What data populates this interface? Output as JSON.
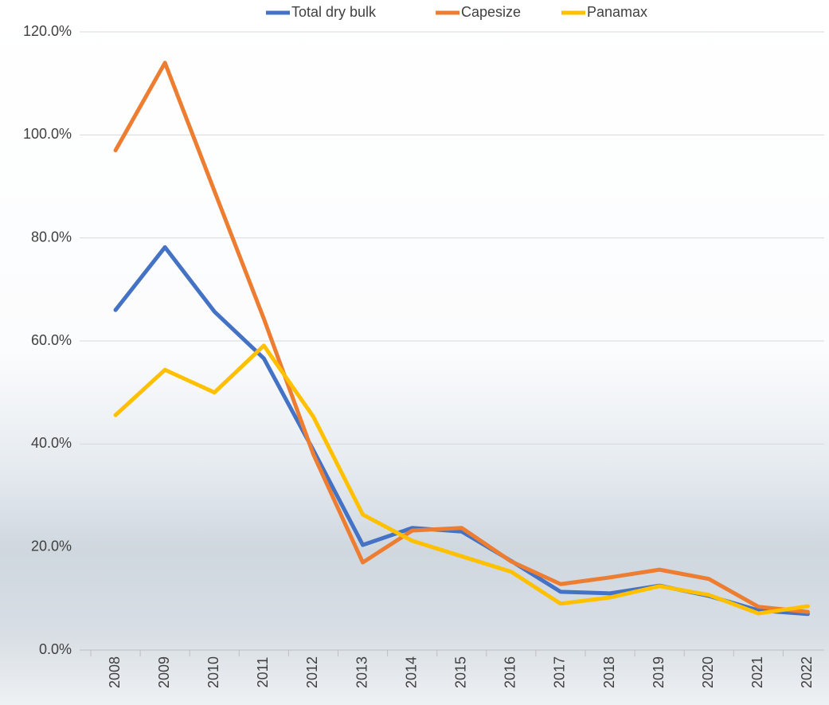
{
  "chart_data": {
    "type": "line",
    "categories": [
      "2008",
      "2009",
      "2010",
      "2011",
      "2012",
      "2013",
      "2014",
      "2015",
      "2016",
      "2017",
      "2018",
      "2019",
      "2020",
      "2021",
      "2022"
    ],
    "series": [
      {
        "name": "Total dry bulk",
        "color": "#4472c4",
        "values": [
          66.0,
          78.2,
          65.7,
          56.6,
          38.8,
          20.4,
          23.7,
          23.0,
          17.3,
          11.3,
          11.0,
          12.5,
          10.5,
          7.7,
          7.0
        ]
      },
      {
        "name": "Capesize",
        "color": "#ed7d31",
        "values": [
          97.0,
          114.0,
          89.1,
          64.3,
          38.0,
          17.0,
          23.2,
          23.7,
          17.2,
          12.8,
          14.1,
          15.6,
          13.8,
          8.4,
          7.4
        ]
      },
      {
        "name": "Panamax",
        "color": "#ffc000",
        "values": [
          45.6,
          54.4,
          50.0,
          59.1,
          45.3,
          26.3,
          21.2,
          18.2,
          15.2,
          9.0,
          10.2,
          12.4,
          10.7,
          7.1,
          8.5
        ]
      }
    ],
    "ylim": [
      0,
      120
    ],
    "yticks": [
      {
        "value": 0,
        "label": "0.0%"
      },
      {
        "value": 20,
        "label": "20.0%"
      },
      {
        "value": 40,
        "label": "40.0%"
      },
      {
        "value": 60,
        "label": "60.0%"
      },
      {
        "value": 80,
        "label": "80.0%"
      },
      {
        "value": 100,
        "label": "100.0%"
      },
      {
        "value": 120,
        "label": "120.0%"
      }
    ],
    "grid": true,
    "legend": "top"
  }
}
